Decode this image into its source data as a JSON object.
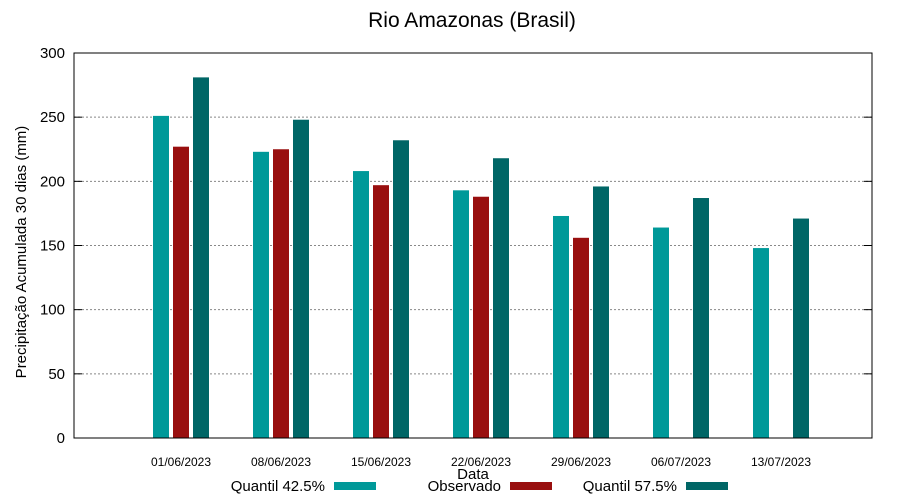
{
  "chart_data": {
    "type": "bar",
    "title": "Rio Amazonas (Brasil)",
    "xlabel": "Data",
    "ylabel": "Precipitação Acumulada 30 dias (mm)",
    "ylim": [
      0,
      300
    ],
    "yticks": [
      0,
      50,
      100,
      150,
      200,
      250,
      300
    ],
    "grid": true,
    "legend_position": "bottom",
    "categories": [
      "01/06/2023",
      "08/06/2023",
      "15/06/2023",
      "22/06/2023",
      "29/06/2023",
      "06/07/2023",
      "13/07/2023"
    ],
    "series": [
      {
        "name": "Quantil 42.5%",
        "color": "#009999",
        "values": [
          251,
          223,
          208,
          193,
          173,
          164,
          148
        ]
      },
      {
        "name": "Observado",
        "color": "#990f0f",
        "values": [
          227,
          225,
          197,
          188,
          156,
          null,
          null
        ]
      },
      {
        "name": "Quantil 57.5%",
        "color": "#006666",
        "values": [
          281,
          248,
          232,
          218,
          196,
          187,
          171
        ]
      }
    ]
  }
}
